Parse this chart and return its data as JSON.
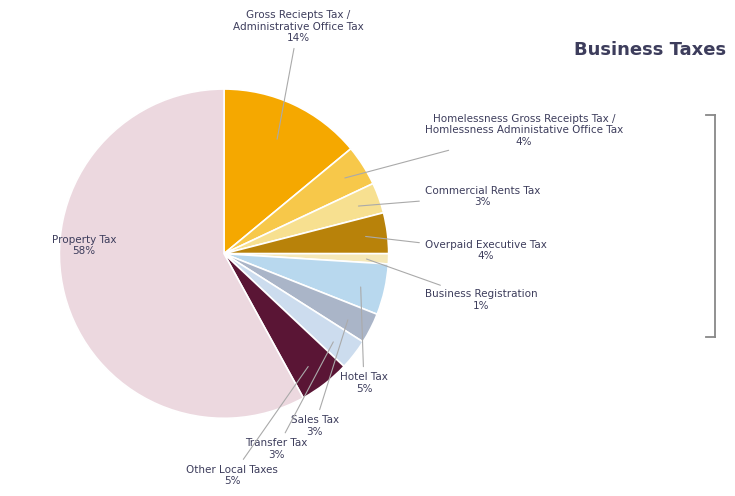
{
  "title": "Business Taxes",
  "slices": [
    {
      "label": "Property Tax\n58%",
      "value": 58,
      "color": "#ecd8df"
    },
    {
      "label": "Gross Reciepts Tax /\nAdministrative Office Tax\n14%",
      "value": 14,
      "color": "#f5a800"
    },
    {
      "label": "Homelessness Gross Receipts Tax /\nHomlessness Administative Office Tax\n4%",
      "value": 4,
      "color": "#f7c84a"
    },
    {
      "label": "Commercial Rents Tax\n3%",
      "value": 3,
      "color": "#f7e090"
    },
    {
      "label": "Overpaid Executive Tax\n4%",
      "value": 4,
      "color": "#b8820a"
    },
    {
      "label": "Business Registration\n1%",
      "value": 1,
      "color": "#f5e8b8"
    },
    {
      "label": "Hotel Tax\n5%",
      "value": 5,
      "color": "#b8d8ee"
    },
    {
      "label": "Sales Tax\n3%",
      "value": 3,
      "color": "#aab5c8"
    },
    {
      "label": "Transfer Tax\n3%",
      "value": 3,
      "color": "#ccdcee"
    },
    {
      "label": "Other Local Taxes\n5%",
      "value": 5,
      "color": "#5a1535"
    }
  ],
  "background_color": "#ffffff",
  "text_color": "#3d3d5c",
  "title_fontsize": 13,
  "label_fontsize": 7.5,
  "bracket_color": "#888888"
}
